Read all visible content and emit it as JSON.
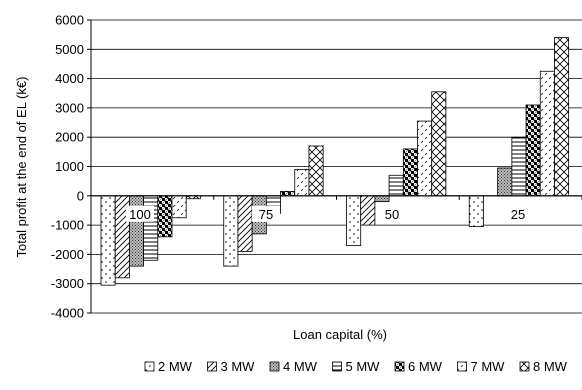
{
  "chart_data": {
    "type": "bar",
    "xlabel": "Loan capital (%)",
    "ylabel": "Total profit at the end of EL (k€)",
    "ylim": [
      -4000,
      6000
    ],
    "yticks": [
      6000,
      5000,
      4000,
      3000,
      2000,
      1000,
      0,
      -1000,
      -2000,
      -3000,
      -4000
    ],
    "grid": true,
    "legend_position": "bottom",
    "categories": [
      "100",
      "75",
      "50",
      "25"
    ],
    "series": [
      {
        "name": "2 MW",
        "pattern": "dots-sparse",
        "values": [
          -3050,
          -2400,
          -1700,
          -1050
        ]
      },
      {
        "name": "3 MW",
        "pattern": "diag-stripes",
        "values": [
          -2800,
          -1900,
          -1000,
          0
        ]
      },
      {
        "name": "4 MW",
        "pattern": "dense-dots",
        "values": [
          -2400,
          -1300,
          -200,
          950
        ]
      },
      {
        "name": "5 MW",
        "pattern": "horizontal-lines",
        "values": [
          -2200,
          -600,
          700,
          2000
        ]
      },
      {
        "name": "6 MW",
        "pattern": "checker",
        "values": [
          -1400,
          150,
          1600,
          3100
        ]
      },
      {
        "name": "7 MW",
        "pattern": "dash-diag",
        "values": [
          -750,
          900,
          2550,
          4250
        ]
      },
      {
        "name": "8 MW",
        "pattern": "crosshatch",
        "values": [
          -100,
          1700,
          3550,
          5400
        ]
      }
    ]
  }
}
